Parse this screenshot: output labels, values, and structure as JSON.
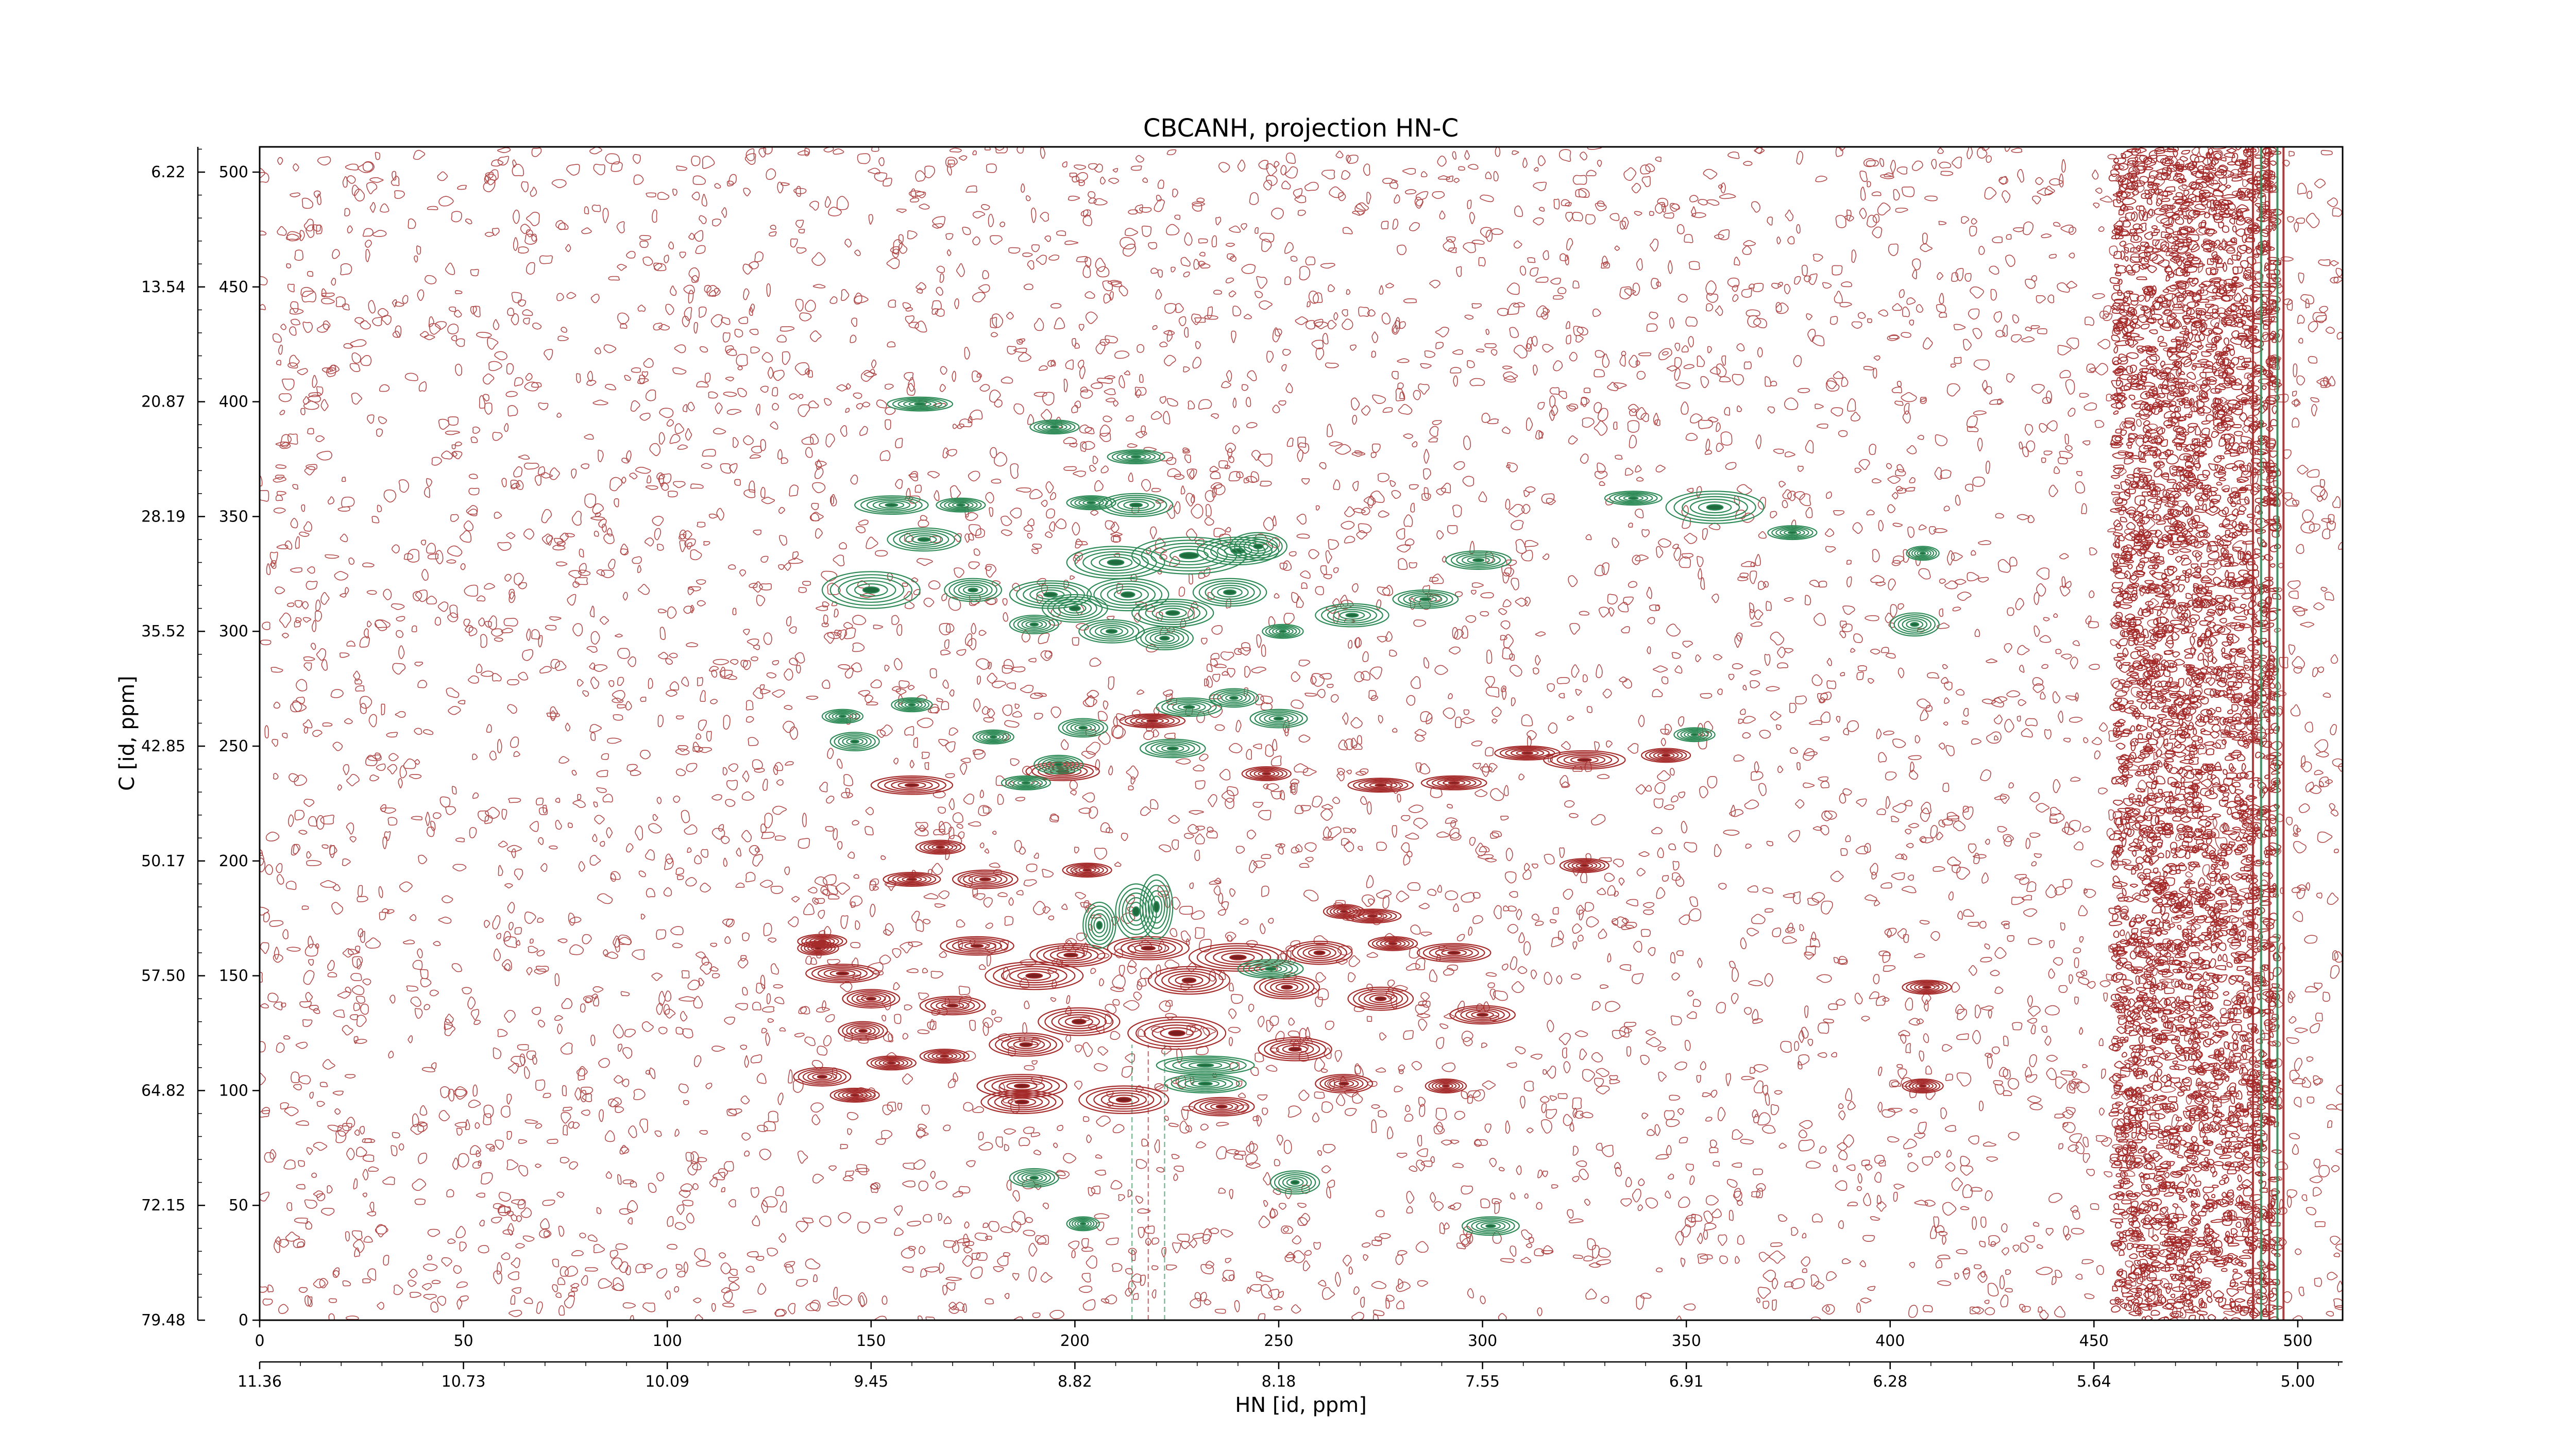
{
  "chart_data": {
    "type": "contour",
    "title": "CBCANH, projection HN-C",
    "xlabel": "HN [id, ppm]",
    "ylabel": "C [id, ppm]",
    "xlim": [
      0,
      511
    ],
    "ylim": [
      0,
      511
    ],
    "x_ticks": [
      0,
      50,
      100,
      150,
      200,
      250,
      300,
      350,
      400,
      450,
      500
    ],
    "x_ppm_ticks": [
      "11.36",
      "10.73",
      "10.09",
      "9.45",
      "8.82",
      "8.18",
      "7.55",
      "6.91",
      "6.28",
      "5.64",
      "5.00"
    ],
    "y_ticks": [
      0,
      50,
      100,
      150,
      200,
      250,
      300,
      350,
      400,
      450,
      500
    ],
    "y_ppm_ticks": [
      "79.48",
      "72.15",
      "64.82",
      "57.50",
      "50.17",
      "42.85",
      "35.52",
      "28.19",
      "20.87",
      "13.54",
      "6.22"
    ],
    "colors": {
      "positive": "#2e8b57",
      "negative": "#a52a2a"
    },
    "positive_peaks": [
      [
        162,
        399,
        8,
        3
      ],
      [
        195,
        389,
        6,
        3
      ],
      [
        215,
        376,
        7,
        3
      ],
      [
        155,
        355,
        9,
        4
      ],
      [
        172,
        355,
        6,
        3
      ],
      [
        204,
        356,
        6,
        3
      ],
      [
        215,
        355,
        9,
        5
      ],
      [
        163,
        340,
        9,
        5
      ],
      [
        210,
        330,
        12,
        7
      ],
      [
        228,
        333,
        14,
        8
      ],
      [
        240,
        335,
        10,
        6
      ],
      [
        245,
        337,
        7,
        6
      ],
      [
        150,
        318,
        12,
        8
      ],
      [
        175,
        318,
        7,
        5
      ],
      [
        194,
        316,
        10,
        6
      ],
      [
        200,
        310,
        8,
        6
      ],
      [
        213,
        316,
        10,
        7
      ],
      [
        224,
        308,
        10,
        6
      ],
      [
        238,
        317,
        9,
        6
      ],
      [
        190,
        303,
        6,
        4
      ],
      [
        209,
        300,
        8,
        5
      ],
      [
        222,
        297,
        7,
        5
      ],
      [
        251,
        300,
        5,
        3
      ],
      [
        268,
        307,
        9,
        5
      ],
      [
        286,
        314,
        8,
        4
      ],
      [
        299,
        331,
        8,
        4
      ],
      [
        357,
        354,
        12,
        7
      ],
      [
        337,
        358,
        7,
        3
      ],
      [
        376,
        343,
        6,
        3
      ],
      [
        408,
        334,
        4,
        3
      ],
      [
        406,
        303,
        6,
        5
      ],
      [
        160,
        268,
        5,
        3
      ],
      [
        143,
        263,
        5,
        3
      ],
      [
        146,
        252,
        6,
        4
      ],
      [
        180,
        254,
        5,
        3
      ],
      [
        202,
        258,
        6,
        4
      ],
      [
        228,
        267,
        8,
        4
      ],
      [
        239,
        271,
        6,
        4
      ],
      [
        250,
        262,
        7,
        4
      ],
      [
        196,
        242,
        6,
        4
      ],
      [
        224,
        249,
        8,
        4
      ],
      [
        215,
        178,
        5,
        12
      ],
      [
        220,
        180,
        4,
        14
      ],
      [
        206,
        172,
        4,
        10
      ],
      [
        190,
        62,
        6,
        4
      ],
      [
        202,
        42,
        4,
        3
      ],
      [
        254,
        60,
        6,
        5
      ],
      [
        302,
        41,
        7,
        4
      ],
      [
        232,
        103,
        10,
        4
      ],
      [
        232,
        111,
        12,
        4
      ],
      [
        248,
        153,
        8,
        4
      ],
      [
        352,
        255,
        5,
        3
      ],
      [
        188,
        234,
        6,
        3
      ]
    ],
    "negative_peaks": [
      [
        160,
        233,
        10,
        4
      ],
      [
        197,
        239,
        9,
        4
      ],
      [
        219,
        261,
        8,
        3
      ],
      [
        247,
        238,
        6,
        3
      ],
      [
        275,
        233,
        8,
        3
      ],
      [
        293,
        234,
        8,
        3
      ],
      [
        325,
        244,
        10,
        4
      ],
      [
        311,
        247,
        8,
        3
      ],
      [
        345,
        246,
        6,
        3
      ],
      [
        167,
        206,
        6,
        3
      ],
      [
        178,
        192,
        8,
        4
      ],
      [
        203,
        196,
        6,
        3
      ],
      [
        160,
        192,
        7,
        3
      ],
      [
        273,
        176,
        7,
        3
      ],
      [
        138,
        165,
        6,
        3
      ],
      [
        176,
        163,
        9,
        4
      ],
      [
        199,
        159,
        10,
        5
      ],
      [
        218,
        162,
        10,
        5
      ],
      [
        240,
        158,
        12,
        6
      ],
      [
        260,
        160,
        8,
        5
      ],
      [
        293,
        160,
        9,
        4
      ],
      [
        278,
        164,
        6,
        3
      ],
      [
        143,
        151,
        9,
        4
      ],
      [
        190,
        150,
        12,
        6
      ],
      [
        228,
        148,
        10,
        6
      ],
      [
        252,
        145,
        8,
        5
      ],
      [
        275,
        140,
        8,
        5
      ],
      [
        300,
        133,
        8,
        4
      ],
      [
        150,
        140,
        7,
        4
      ],
      [
        170,
        137,
        8,
        4
      ],
      [
        201,
        130,
        10,
        6
      ],
      [
        225,
        125,
        12,
        7
      ],
      [
        254,
        118,
        9,
        5
      ],
      [
        148,
        126,
        6,
        4
      ],
      [
        168,
        115,
        6,
        3
      ],
      [
        188,
        120,
        9,
        5
      ],
      [
        138,
        106,
        7,
        4
      ],
      [
        155,
        112,
        6,
        3
      ],
      [
        187,
        102,
        11,
        5
      ],
      [
        212,
        96,
        11,
        6
      ],
      [
        236,
        93,
        8,
        4
      ],
      [
        266,
        103,
        7,
        4
      ],
      [
        291,
        102,
        5,
        3
      ],
      [
        146,
        98,
        6,
        3
      ],
      [
        408,
        102,
        5,
        3
      ],
      [
        409,
        145,
        6,
        3
      ],
      [
        187,
        95,
        10,
        5
      ],
      [
        266,
        178,
        5,
        3
      ],
      [
        137,
        162,
        5,
        3
      ],
      [
        325,
        198,
        6,
        3
      ]
    ]
  }
}
